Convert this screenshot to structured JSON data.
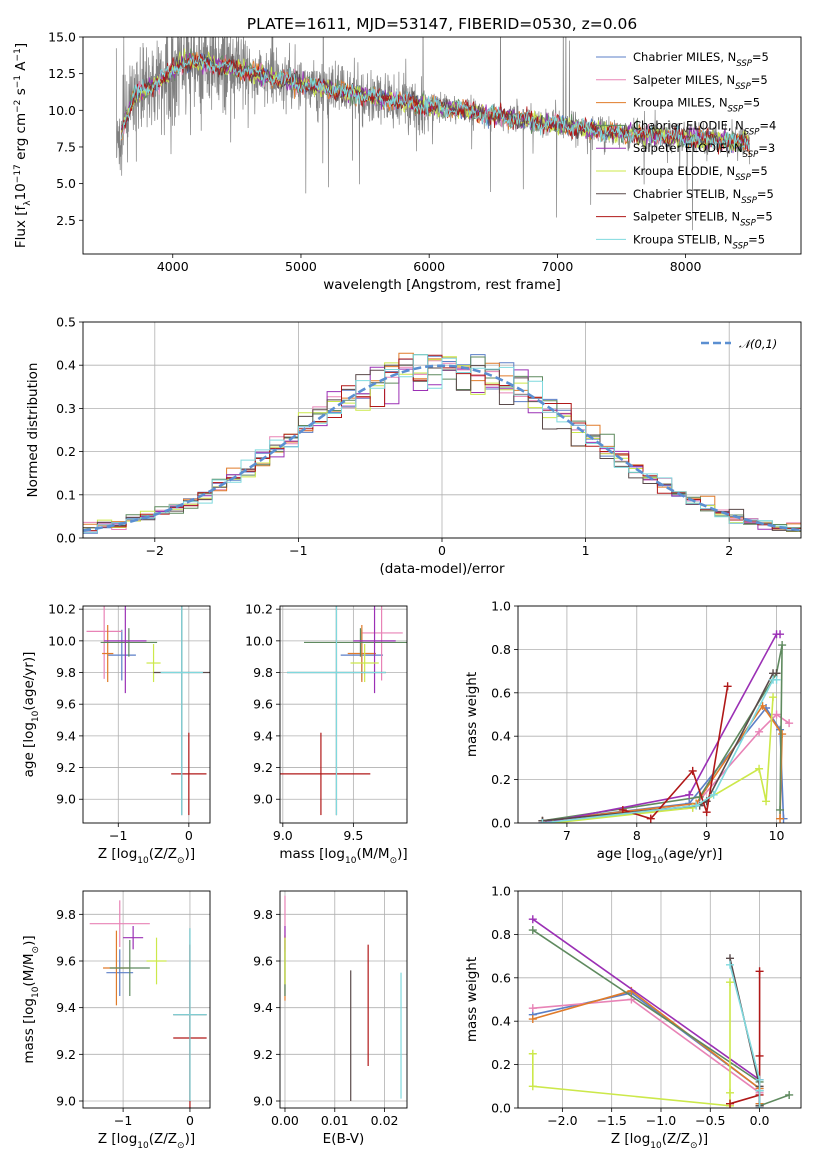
{
  "figure": {
    "title": "PLATE=1611, MJD=53147, FIBERID=0530, z=0.06"
  },
  "models": [
    {
      "name": "Chabrier MILES, N_SSP=5",
      "base": "Chabrier MILES, N",
      "sub": "SSP",
      "tail": "=5",
      "color": "#5b7fc7"
    },
    {
      "name": "Salpeter MILES, N_SSP=5",
      "base": "Salpeter MILES, N",
      "sub": "SSP",
      "tail": "=5",
      "color": "#e883b6"
    },
    {
      "name": "Kroupa MILES, N_SSP=5",
      "base": "Kroupa MILES, N",
      "sub": "SSP",
      "tail": "=5",
      "color": "#e07b2a"
    },
    {
      "name": "Chabrier ELODIE, N_SSP=4",
      "base": "Chabrier ELODIE, N",
      "sub": "SSP",
      "tail": "=4",
      "color": "#5f8a5f"
    },
    {
      "name": "Salpeter ELODIE, N_SSP=3",
      "base": "Salpeter ELODIE, N",
      "sub": "SSP",
      "tail": "=3",
      "color": "#9b30b5"
    },
    {
      "name": "Kroupa ELODIE, N_SSP=5",
      "base": "Kroupa ELODIE, N",
      "sub": "SSP",
      "tail": "=5",
      "color": "#cce84a"
    },
    {
      "name": "Chabrier STELIB, N_SSP=5",
      "base": "Chabrier STELIB, N",
      "sub": "SSP",
      "tail": "=5",
      "color": "#5a4a4a"
    },
    {
      "name": "Salpeter STELIB, N_SSP=5",
      "base": "Salpeter STELIB, N",
      "sub": "SSP",
      "tail": "=5",
      "color": "#b01818"
    },
    {
      "name": "Kroupa STELIB, N_SSP=5",
      "base": "Kroupa STELIB, N",
      "sub": "SSP",
      "tail": "=5",
      "color": "#7fd9de"
    }
  ],
  "chart_data": [
    {
      "id": "spectrum",
      "type": "line",
      "title": "PLATE=1611, MJD=53147, FIBERID=0530, z=0.06",
      "xlabel": "wavelength [Angstrom, rest frame]",
      "ylabel_parts": [
        "Flux [f",
        "λ",
        "10",
        "−17",
        " erg cm",
        "−2",
        " s",
        "−1",
        " A",
        "−1",
        "]"
      ],
      "xlim": [
        3300,
        8900
      ],
      "ylim": [
        0.2,
        15.0
      ],
      "xticks": [
        4000,
        5000,
        6000,
        7000,
        8000
      ],
      "yticks": [
        2.5,
        5.0,
        7.5,
        10.0,
        12.5,
        15.0
      ],
      "grid": false,
      "legend": "top-right",
      "data_color": "#808080",
      "data_x_range": [
        3560,
        8500
      ],
      "data_y_range": [
        2.5,
        15.0
      ],
      "continuum": {
        "x": [
          3580,
          3700,
          3850,
          4000,
          4100,
          4300,
          4600,
          5000,
          5500,
          6000,
          6500,
          7000,
          7500,
          8000,
          8500
        ],
        "y": [
          8.0,
          11.0,
          11.7,
          12.7,
          13.3,
          13.2,
          12.6,
          11.8,
          11.0,
          10.3,
          9.7,
          9.0,
          8.4,
          8.1,
          7.8
        ]
      }
    },
    {
      "id": "residuals",
      "type": "histogram",
      "xlabel": "(data-model)/error",
      "ylabel": "Normed distribution",
      "xlim": [
        -2.5,
        2.5
      ],
      "ylim": [
        0.0,
        0.5
      ],
      "xticks": [
        -2,
        -1,
        0,
        1,
        2
      ],
      "yticks": [
        0.0,
        0.1,
        0.2,
        0.3,
        0.4,
        0.5
      ],
      "grid": true,
      "legend": "top-right",
      "reference_curve": {
        "label": "𝒩(0,1)",
        "mean": 0,
        "sigma": 1
      },
      "bin_width": 0.1
    },
    {
      "id": "age-vs-Z",
      "type": "errorbar",
      "xlabel_parts": [
        "Z [log",
        "10",
        "(Z/Z",
        "⊙",
        ")]"
      ],
      "ylabel_parts": [
        "age  [log",
        "10",
        "(age/yr)]"
      ],
      "xlim": [
        -1.5,
        0.3
      ],
      "ylim": [
        8.85,
        10.22
      ],
      "xticks": [
        -1,
        0
      ],
      "yticks": [
        9.0,
        9.2,
        9.4,
        9.6,
        9.8,
        10.0,
        10.2
      ],
      "grid": true,
      "points": [
        {
          "model": 0,
          "x": -0.95,
          "xerr": 0.2,
          "y": 9.91,
          "yerr": 0.16
        },
        {
          "model": 1,
          "x": -1.2,
          "xerr": 0.25,
          "y": 10.06,
          "yerr": 0.3
        },
        {
          "model": 2,
          "x": -1.15,
          "xerr": 0.08,
          "y": 9.92,
          "yerr": 0.18
        },
        {
          "model": 3,
          "x": -0.85,
          "xerr": 0.4,
          "y": 9.99,
          "yerr": 0.09
        },
        {
          "model": 4,
          "x": -0.9,
          "xerr": 0.3,
          "y": 10.0,
          "yerr": 0.33
        },
        {
          "model": 5,
          "x": -0.5,
          "xerr": 0.1,
          "y": 9.86,
          "yerr": 0.12
        },
        {
          "model": 6,
          "x": -0.1,
          "xerr": 0.4,
          "y": 9.8,
          "yerr": 0.9
        },
        {
          "model": 7,
          "x": 0.0,
          "xerr": 0.25,
          "y": 9.16,
          "yerr": 0.26
        },
        {
          "model": 8,
          "x": -0.1,
          "xerr": 0.3,
          "y": 9.8,
          "yerr": 0.9
        }
      ]
    },
    {
      "id": "age-vs-mass",
      "type": "errorbar",
      "xlabel_parts": [
        "mass [log",
        "10",
        "(M/M",
        "⊙",
        ")]"
      ],
      "ylabel_parts": [],
      "xlim": [
        8.98,
        9.88
      ],
      "ylim": [
        8.85,
        10.22
      ],
      "xticks": [
        9.0,
        9.5
      ],
      "yticks": [
        9.0,
        9.2,
        9.4,
        9.6,
        9.8,
        10.0,
        10.2
      ],
      "grid": true,
      "points": [
        {
          "model": 0,
          "x": 9.56,
          "xerr": 0.15,
          "y": 9.91,
          "yerr": 0.16
        },
        {
          "model": 1,
          "x": 9.7,
          "xerr": 0.15,
          "y": 10.05,
          "yerr": 0.3
        },
        {
          "model": 2,
          "x": 9.56,
          "xerr": 0.1,
          "y": 9.92,
          "yerr": 0.18
        },
        {
          "model": 3,
          "x": 9.55,
          "xerr": 0.4,
          "y": 9.99,
          "yerr": 0.09
        },
        {
          "model": 4,
          "x": 9.65,
          "xerr": 0.15,
          "y": 10.0,
          "yerr": 0.33
        },
        {
          "model": 5,
          "x": 9.58,
          "xerr": 0.1,
          "y": 9.86,
          "yerr": 0.12
        },
        {
          "model": 6,
          "x": 9.38,
          "xerr": 0.35,
          "y": 9.8,
          "yerr": 0.9
        },
        {
          "model": 7,
          "x": 9.27,
          "xerr": 0.35,
          "y": 9.16,
          "yerr": 0.26
        },
        {
          "model": 8,
          "x": 9.38,
          "xerr": 0.35,
          "y": 9.8,
          "yerr": 0.9
        }
      ]
    },
    {
      "id": "massweight-vs-age",
      "type": "line",
      "xlabel_parts": [
        "age  [log",
        "10",
        "(age/yr)]"
      ],
      "ylabel": "mass weight",
      "xlim": [
        6.3,
        10.35
      ],
      "ylim": [
        0.0,
        1.0
      ],
      "xticks": [
        7,
        8,
        9,
        10
      ],
      "yticks": [
        0.0,
        0.2,
        0.4,
        0.6,
        0.8,
        1.0
      ],
      "grid": true,
      "series": [
        {
          "model": 0,
          "x": [
            6.65,
            8.75,
            9.85,
            10.05,
            10.1
          ],
          "y": [
            0.01,
            0.09,
            0.53,
            0.43,
            0.02
          ]
        },
        {
          "model": 1,
          "x": [
            6.65,
            8.8,
            9.75,
            10.0,
            10.18
          ],
          "y": [
            0.01,
            0.07,
            0.42,
            0.5,
            0.46
          ]
        },
        {
          "model": 2,
          "x": [
            6.65,
            8.85,
            9.8,
            10.08,
            10.05
          ],
          "y": [
            0.01,
            0.09,
            0.54,
            0.41,
            0.02
          ]
        },
        {
          "model": 3,
          "x": [
            6.65,
            8.9,
            10.0,
            10.08,
            10.05
          ],
          "y": [
            0.01,
            0.12,
            0.69,
            0.82,
            0.06
          ]
        },
        {
          "model": 4,
          "x": [
            6.65,
            8.75,
            10.0,
            10.05
          ],
          "y": [
            0.0,
            0.13,
            0.87,
            0.87
          ]
        },
        {
          "model": 5,
          "x": [
            6.8,
            8.8,
            9.75,
            9.85,
            9.95
          ],
          "y": [
            0.0,
            0.07,
            0.25,
            0.1,
            0.58
          ]
        },
        {
          "model": 6,
          "x": [
            6.65,
            8.9,
            9.0,
            9.95,
            10.0
          ],
          "y": [
            0.01,
            0.08,
            0.1,
            0.69,
            0.69
          ]
        },
        {
          "model": 7,
          "x": [
            7.8,
            8.2,
            8.8,
            9.0,
            9.3
          ],
          "y": [
            0.06,
            0.02,
            0.24,
            0.05,
            0.63
          ]
        },
        {
          "model": 8,
          "x": [
            6.65,
            8.85,
            9.1,
            9.95,
            10.0
          ],
          "y": [
            0.0,
            0.08,
            0.13,
            0.66,
            0.66
          ]
        }
      ]
    },
    {
      "id": "mass-vs-Z",
      "type": "errorbar",
      "xlabel_parts": [
        "Z [log",
        "10",
        "(Z/Z",
        "⊙",
        ")]"
      ],
      "ylabel_parts": [
        "mass [log",
        "10",
        "(M/M",
        "⊙",
        ")]"
      ],
      "xlim": [
        -1.6,
        0.3
      ],
      "ylim": [
        8.97,
        9.9
      ],
      "xticks": [
        -1,
        0
      ],
      "yticks": [
        9.0,
        9.2,
        9.4,
        9.6,
        9.8
      ],
      "grid": true,
      "points": [
        {
          "model": 0,
          "x": -1.05,
          "xerr": 0.2,
          "y": 9.55,
          "yerr": 0.1
        },
        {
          "model": 1,
          "x": -1.05,
          "xerr": 0.45,
          "y": 9.76,
          "yerr": 0.1
        },
        {
          "model": 2,
          "x": -1.1,
          "xerr": 0.2,
          "y": 9.57,
          "yerr": 0.16
        },
        {
          "model": 3,
          "x": -0.9,
          "xerr": 0.3,
          "y": 9.57,
          "yerr": 0.12
        },
        {
          "model": 4,
          "x": -0.85,
          "xerr": 0.15,
          "y": 9.7,
          "yerr": 0.05
        },
        {
          "model": 5,
          "x": -0.5,
          "xerr": 0.15,
          "y": 9.6,
          "yerr": 0.1
        },
        {
          "model": 6,
          "x": 0.0,
          "xerr": 0.25,
          "y": 9.37,
          "yerr": 0.37
        },
        {
          "model": 7,
          "x": 0.0,
          "xerr": 0.25,
          "y": 9.27,
          "yerr": 0.4
        },
        {
          "model": 8,
          "x": 0.0,
          "xerr": 0.25,
          "y": 9.37,
          "yerr": 0.37
        }
      ]
    },
    {
      "id": "mass-vs-ebv",
      "type": "errorbar",
      "xlabel": "E(B-V)",
      "ylabel_parts": [],
      "xlim": [
        -0.001,
        0.0245
      ],
      "ylim": [
        8.97,
        9.9
      ],
      "xticks": [
        0.0,
        0.01,
        0.02
      ],
      "yticks": [
        9.0,
        9.2,
        9.4,
        9.6,
        9.8
      ],
      "grid": true,
      "points": [
        {
          "model": 0,
          "x": 0.0,
          "xerr": 0.0,
          "y": 9.55,
          "yerr": 0.1
        },
        {
          "model": 1,
          "x": 0.0,
          "xerr": 0.0,
          "y": 9.76,
          "yerr": 0.12
        },
        {
          "model": 2,
          "x": 0.0,
          "xerr": 0.0,
          "y": 9.57,
          "yerr": 0.14
        },
        {
          "model": 3,
          "x": 0.0,
          "xerr": 0.0,
          "y": 9.57,
          "yerr": 0.12
        },
        {
          "model": 4,
          "x": 0.0,
          "xerr": 0.0,
          "y": 9.7,
          "yerr": 0.05
        },
        {
          "model": 5,
          "x": 0.0,
          "xerr": 0.0,
          "y": 9.6,
          "yerr": 0.1
        },
        {
          "model": 6,
          "x": 0.0132,
          "xerr": 0.0,
          "y": 9.28,
          "yerr": 0.28
        },
        {
          "model": 7,
          "x": 0.0167,
          "xerr": 0.0,
          "y": 9.41,
          "yerr": 0.26
        },
        {
          "model": 8,
          "x": 0.0233,
          "xerr": 0.0,
          "y": 9.28,
          "yerr": 0.27
        }
      ]
    },
    {
      "id": "massweight-vs-Z",
      "type": "line",
      "xlabel_parts": [
        "Z [log",
        "10",
        "(Z/Z",
        "⊙",
        ")]"
      ],
      "ylabel": "mass weight",
      "xlim": [
        -2.45,
        0.42
      ],
      "ylim": [
        0.0,
        1.0
      ],
      "xticks": [
        -2.0,
        -1.5,
        -1.0,
        -0.5,
        0.0
      ],
      "yticks": [
        0.0,
        0.2,
        0.4,
        0.6,
        0.8,
        1.0
      ],
      "grid": true,
      "series": [
        {
          "model": 0,
          "x": [
            -2.3,
            -1.3,
            0.0,
            0.0,
            0.0
          ],
          "y": [
            0.43,
            0.53,
            0.09,
            0.02,
            0.01
          ]
        },
        {
          "model": 1,
          "x": [
            -2.3,
            -1.3,
            0.0,
            0.0,
            0.0
          ],
          "y": [
            0.46,
            0.5,
            0.07,
            0.01,
            0.01
          ]
        },
        {
          "model": 2,
          "x": [
            -2.3,
            -1.3,
            0.0,
            0.0,
            0.0
          ],
          "y": [
            0.41,
            0.54,
            0.09,
            0.02,
            0.01
          ]
        },
        {
          "model": 3,
          "x": [
            -2.3,
            0.0,
            0.0,
            0.3
          ],
          "y": [
            0.82,
            0.12,
            0.01,
            0.06
          ]
        },
        {
          "model": 4,
          "x": [
            -2.3,
            0.0,
            0.0
          ],
          "y": [
            0.87,
            0.13,
            0.0
          ]
        },
        {
          "model": 5,
          "x": [
            -2.3,
            -2.3,
            -0.3,
            -0.3,
            -0.3
          ],
          "y": [
            0.25,
            0.1,
            0.01,
            0.58,
            0.07
          ]
        },
        {
          "model": 6,
          "x": [
            -0.3,
            0.0,
            0.0,
            0.0
          ],
          "y": [
            0.69,
            0.1,
            0.08,
            0.01
          ]
        },
        {
          "model": 7,
          "x": [
            -0.3,
            0.0,
            0.0,
            0.0
          ],
          "y": [
            0.02,
            0.06,
            0.24,
            0.63
          ]
        },
        {
          "model": 8,
          "x": [
            -0.3,
            0.0,
            0.0,
            0.0
          ],
          "y": [
            0.66,
            0.13,
            0.08,
            0.0
          ]
        }
      ]
    }
  ]
}
